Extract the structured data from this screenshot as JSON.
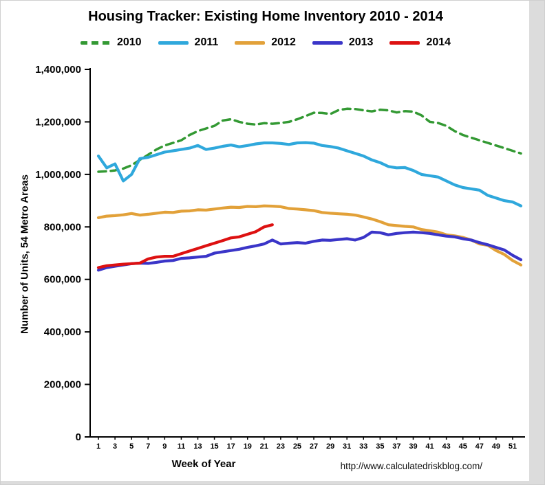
{
  "page": {
    "url_caption": "http://www.calculatedriskblog.com/"
  },
  "chart_data": {
    "type": "line",
    "title": "Housing Tracker: Existing Home Inventory 2010 - 2014",
    "xlabel": "Week of Year",
    "ylabel": "Number of Units, 54 Metro Areas",
    "xlim": [
      0,
      52.5
    ],
    "ylim": [
      0,
      1400000
    ],
    "x_start": 1,
    "x_ticks": [
      1,
      3,
      5,
      7,
      9,
      11,
      13,
      15,
      17,
      19,
      21,
      23,
      25,
      27,
      29,
      31,
      33,
      35,
      37,
      39,
      41,
      43,
      45,
      47,
      49,
      51
    ],
    "y_ticks": [
      0,
      200000,
      400000,
      600000,
      800000,
      1000000,
      1200000,
      1400000
    ],
    "grid": false,
    "legend_position": "top",
    "axis_color": "#000000",
    "series": [
      {
        "name": "2010",
        "color": "#339933",
        "dash": true,
        "values": [
          1010000,
          1012000,
          1015000,
          1022000,
          1035000,
          1055000,
          1075000,
          1095000,
          1110000,
          1120000,
          1130000,
          1150000,
          1165000,
          1175000,
          1185000,
          1205000,
          1210000,
          1200000,
          1193000,
          1190000,
          1195000,
          1193000,
          1196000,
          1200000,
          1210000,
          1222000,
          1235000,
          1234000,
          1230000,
          1245000,
          1250000,
          1249000,
          1244000,
          1240000,
          1246000,
          1244000,
          1236000,
          1241000,
          1239000,
          1225000,
          1200000,
          1196000,
          1185000,
          1165000,
          1150000,
          1140000,
          1130000,
          1120000,
          1110000,
          1100000,
          1090000,
          1080000
        ]
      },
      {
        "name": "2011",
        "color": "#2fa8dc",
        "dash": false,
        "values": [
          1070000,
          1025000,
          1040000,
          975000,
          1000000,
          1060000,
          1065000,
          1075000,
          1085000,
          1090000,
          1095000,
          1100000,
          1110000,
          1095000,
          1100000,
          1107000,
          1112000,
          1105000,
          1110000,
          1116000,
          1120000,
          1120000,
          1118000,
          1114000,
          1120000,
          1121000,
          1119000,
          1110000,
          1106000,
          1100000,
          1090000,
          1080000,
          1070000,
          1055000,
          1045000,
          1030000,
          1025000,
          1026000,
          1015000,
          1000000,
          995000,
          990000,
          975000,
          960000,
          950000,
          945000,
          940000,
          920000,
          910000,
          900000,
          895000,
          880000
        ]
      },
      {
        "name": "2012",
        "color": "#e2a139",
        "dash": false,
        "values": [
          835000,
          841000,
          843000,
          846000,
          851000,
          845000,
          848000,
          852000,
          856000,
          855000,
          860000,
          861000,
          865000,
          864000,
          868000,
          872000,
          875000,
          874000,
          878000,
          877000,
          880000,
          879000,
          877000,
          870000,
          868000,
          865000,
          862000,
          855000,
          852000,
          850000,
          848000,
          845000,
          838000,
          830000,
          820000,
          808000,
          805000,
          802000,
          800000,
          790000,
          785000,
          780000,
          770000,
          766000,
          760000,
          750000,
          735000,
          730000,
          710000,
          695000,
          672000,
          655000
        ]
      },
      {
        "name": "2013",
        "color": "#3a35c8",
        "dash": false,
        "values": [
          635000,
          645000,
          650000,
          655000,
          660000,
          662000,
          661000,
          665000,
          670000,
          672000,
          680000,
          682000,
          685000,
          688000,
          700000,
          705000,
          710000,
          715000,
          722000,
          728000,
          735000,
          750000,
          735000,
          738000,
          740000,
          738000,
          745000,
          750000,
          749000,
          752000,
          755000,
          750000,
          760000,
          780000,
          778000,
          770000,
          775000,
          778000,
          780000,
          778000,
          775000,
          770000,
          765000,
          762000,
          755000,
          750000,
          740000,
          732000,
          722000,
          712000,
          692000,
          675000
        ]
      },
      {
        "name": "2014",
        "color": "#dd1111",
        "dash": false,
        "values": [
          645000,
          652000,
          655000,
          658000,
          660000,
          662000,
          678000,
          685000,
          688000,
          688000,
          698000,
          708000,
          718000,
          728000,
          738000,
          748000,
          758000,
          762000,
          772000,
          782000,
          800000,
          808000
        ]
      }
    ]
  }
}
